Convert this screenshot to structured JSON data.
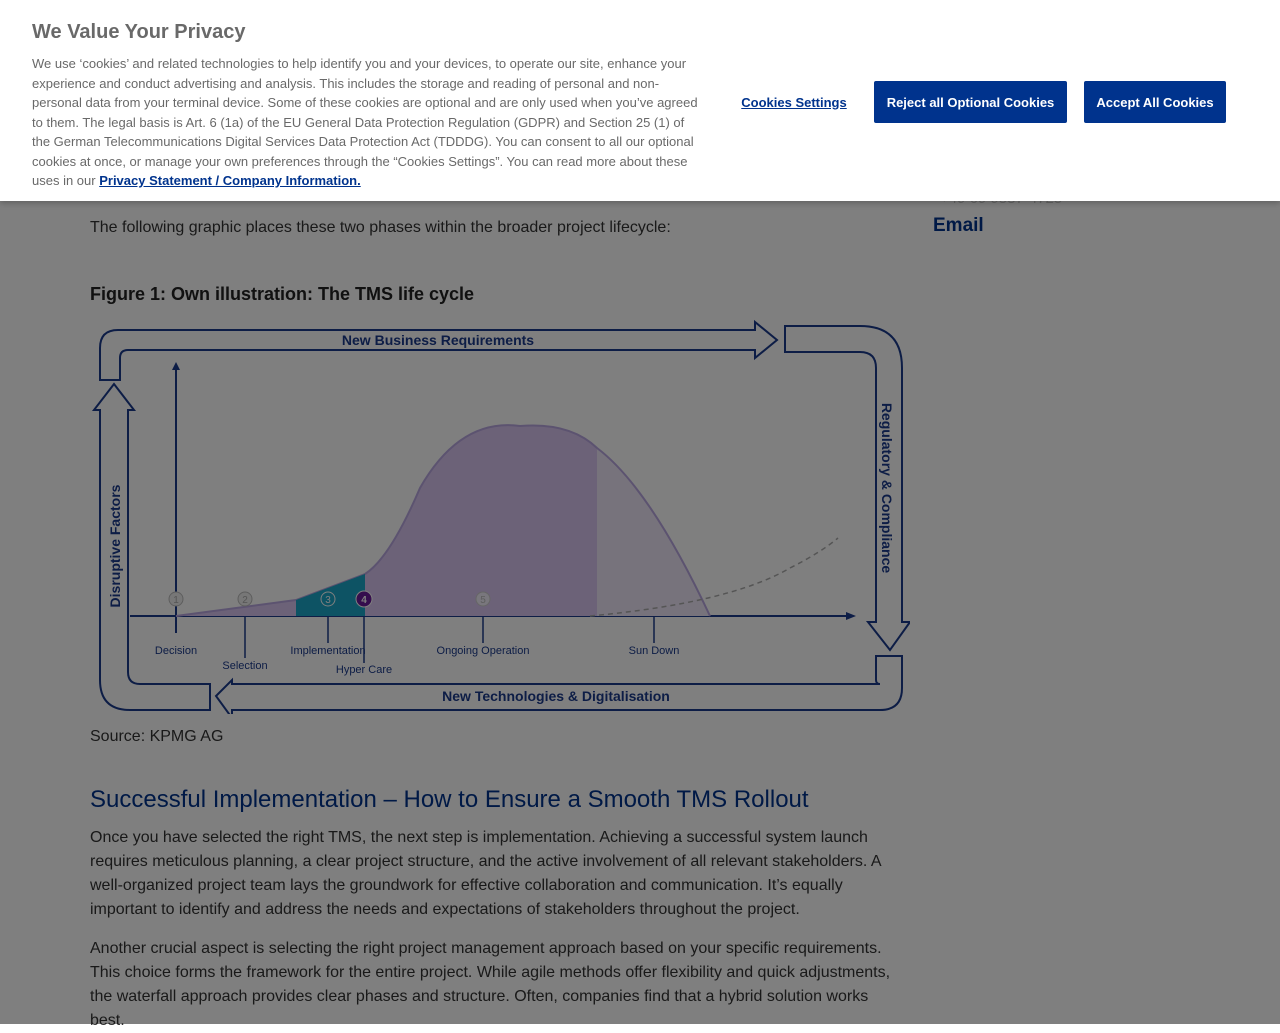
{
  "article": {
    "intro": "The following graphic places these two phases within the broader project lifecycle:",
    "figure_title": "Figure 1: Own illustration: The TMS life cycle",
    "source": "Source: KPMG AG",
    "heading": "Successful Implementation – How to Ensure a Smooth TMS Rollout",
    "para1": "Once you have selected the right TMS, the next step is implementation. Achieving a successful system launch requires meticulous planning, a clear project structure, and the active involvement of all relevant stakeholders. A well-organized project team lays the groundwork for effective collaboration and communication. It’s equally important to identify and address the needs and expectations of stakeholders throughout the project.",
    "para2": "Another crucial aspect is selecting the right project management approach based on your specific requirements. This choice forms the framework for the entire project. While agile methods offer flexibility and quick adjustments, the waterfall approach provides clear phases and structure. Often, companies find that a hybrid solution works best."
  },
  "sidebar": {
    "email": "Email"
  },
  "figure": {
    "top_arrow": "New Business Requirements",
    "bottom_arrow": "New Technologies & Digitalisation",
    "left_arrow": "Disruptive Factors",
    "right_arrow": "Regulatory & Compliance",
    "phases": [
      {
        "num": "1",
        "label": "Decision"
      },
      {
        "num": "2",
        "label": "Selection"
      },
      {
        "num": "3",
        "label": "Implementation"
      },
      {
        "num": "4",
        "label": "Hyper Care"
      },
      {
        "num": "5",
        "label": "Ongoing Operation"
      },
      {
        "num": "",
        "label": "Sun Down"
      }
    ]
  },
  "banner": {
    "title": "We Value Your Privacy",
    "text": "We use ‘cookies’ and related technologies to help identify you and your devices, to operate our site, enhance your experience and conduct advertising and analysis. This includes the storage and reading of personal and non-personal data from your terminal device. Some of these cookies are optional and are only used when you’ve agreed to them. The legal basis is Art. 6 (1a) of the EU General Data Protection Regulation (GDPR) and Section 25 (1) of the German Telecommunications Digital Services Data Protection Act (TDDDG). You can consent to all our optional cookies at once, or manage your own preferences through the “Cookies Settings”. You can read more about these uses in our",
    "link": "Privacy Statement / Company Information.",
    "settings": "Cookies Settings",
    "reject": "Reject all Optional Cookies",
    "accept": "Accept All Cookies"
  },
  "colors": {
    "brand_blue": "#00338D",
    "overlay": "rgba(0,0,0,0.5)",
    "curve_purple": "#d8c5f0",
    "implementation_teal": "#1aa6c8",
    "hypercare_purple": "#6a1a9a"
  }
}
